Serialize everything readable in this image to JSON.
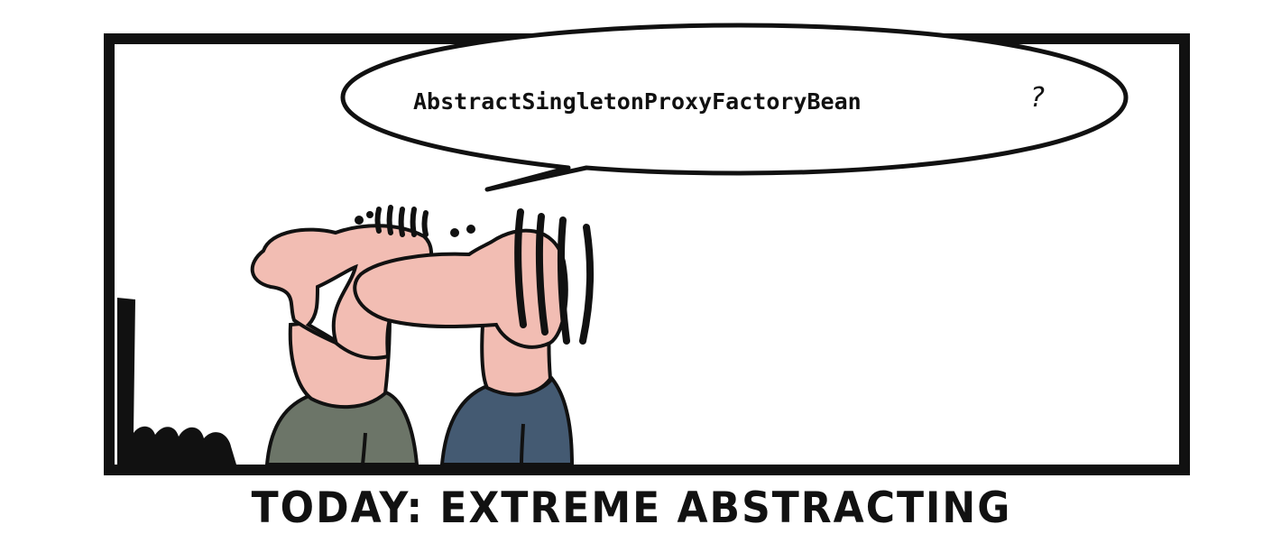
{
  "comic": {
    "speech": "AbstractSingletonProxyFactoryBean",
    "speech_mark": "?",
    "caption": "TODAY: EXTREME ABSTRACTING",
    "colors": {
      "skin": "#f2bdb3",
      "shirt_left": "#6c7568",
      "shirt_right": "#445a72",
      "ink": "#111111"
    }
  }
}
